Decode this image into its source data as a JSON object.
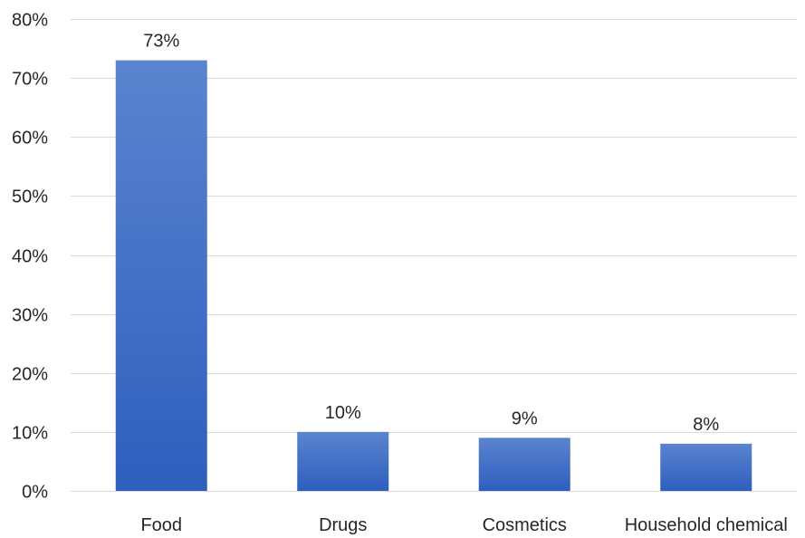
{
  "chart_data": {
    "type": "bar",
    "categories": [
      "Food",
      "Drugs",
      "Cosmetics",
      "Household chemical"
    ],
    "values": [
      0.73,
      0.1,
      0.09,
      0.08
    ],
    "data_labels": [
      "73%",
      "10%",
      "9%",
      "8%"
    ],
    "title": "",
    "xlabel": "",
    "ylabel": "",
    "ylim": [
      0,
      0.8
    ],
    "yticks": [
      0,
      0.1,
      0.2,
      0.3,
      0.4,
      0.5,
      0.6,
      0.7,
      0.8
    ],
    "ytick_labels": [
      "0%",
      "10%",
      "20%",
      "30%",
      "40%",
      "50%",
      "60%",
      "70%",
      "80%"
    ],
    "grid": true,
    "legend": "none",
    "colors": {
      "bar_top": "#5b84cf",
      "bar_bottom": "#2e5fbe",
      "grid": "#d9d9d9",
      "text": "#262626"
    }
  }
}
